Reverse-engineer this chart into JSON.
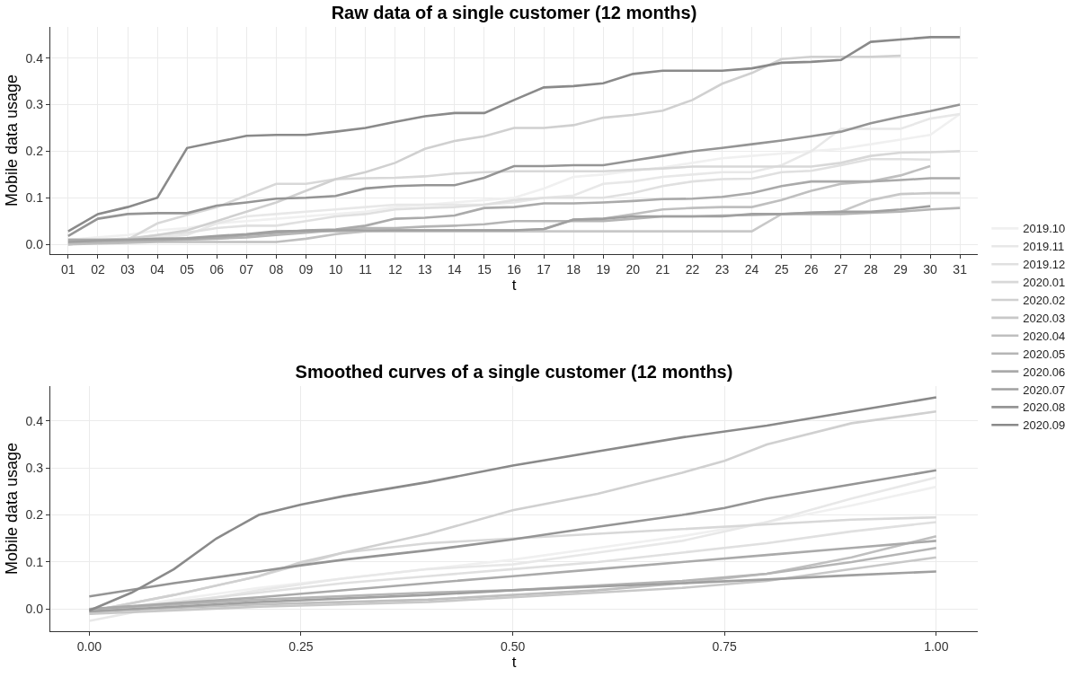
{
  "chart_data": [
    {
      "type": "line",
      "title": "Raw data of a single customer (12 months)",
      "xlabel": "t",
      "ylabel": "Mobile data usage",
      "categories": [
        "01",
        "02",
        "03",
        "04",
        "05",
        "06",
        "07",
        "08",
        "09",
        "10",
        "11",
        "12",
        "13",
        "14",
        "15",
        "16",
        "17",
        "18",
        "19",
        "20",
        "21",
        "22",
        "23",
        "24",
        "25",
        "26",
        "27",
        "28",
        "29",
        "30",
        "31"
      ],
      "ylim": [
        -0.021,
        0.467
      ],
      "yticks": [
        {
          "value": 0,
          "label": "0.0"
        },
        0.1,
        0.2,
        0.3,
        0.4
      ],
      "grid": true,
      "legend": "right",
      "marker": "none",
      "series": [
        {
          "name": "2019.10",
          "color": "#f0f0f0",
          "values": [
            0.01,
            0.015,
            0.02,
            0.03,
            0.035,
            0.045,
            0.05,
            0.055,
            0.06,
            0.065,
            0.07,
            0.08,
            0.085,
            0.09,
            0.095,
            0.1,
            0.12,
            0.145,
            0.15,
            0.158,
            0.165,
            0.175,
            0.185,
            0.19,
            0.195,
            0.2,
            0.205,
            0.215,
            0.225,
            0.235,
            0.28
          ]
        },
        {
          "name": "2019.11",
          "color": "#e8e8e8",
          "values": [
            0.005,
            0.008,
            0.01,
            0.015,
            0.02,
            0.045,
            0.06,
            0.065,
            0.07,
            0.075,
            0.08,
            0.085,
            0.085,
            0.085,
            0.085,
            0.09,
            0.1,
            0.105,
            0.13,
            0.135,
            0.145,
            0.15,
            0.155,
            0.155,
            0.17,
            0.2,
            0.248,
            0.248,
            0.248,
            0.27,
            0.28
          ]
        },
        {
          "name": "2019.12",
          "color": "#e0e0e0",
          "values": [
            0,
            0.005,
            0.01,
            0.02,
            0.025,
            0.035,
            0.04,
            0.04,
            0.05,
            0.06,
            0.065,
            0.075,
            0.078,
            0.08,
            0.085,
            0.095,
            0.1,
            0.1,
            0.1,
            0.11,
            0.125,
            0.135,
            0.14,
            0.141,
            0.155,
            0.158,
            0.17,
            0.183,
            0.183,
            0.182,
            null
          ]
        },
        {
          "name": "2020.01",
          "color": "#d8d8d8",
          "values": [
            0.01,
            0.01,
            0.01,
            0.045,
            0.063,
            0.08,
            0.105,
            0.13,
            0.13,
            0.14,
            0.142,
            0.143,
            0.146,
            0.152,
            0.155,
            0.157,
            0.157,
            0.157,
            0.157,
            0.16,
            0.163,
            0.167,
            0.167,
            0.167,
            0.167,
            0.167,
            0.175,
            0.19,
            0.197,
            0.198,
            0.2
          ]
        },
        {
          "name": "2020.02",
          "color": "#d0d0d0",
          "values": [
            0.01,
            0.01,
            0.012,
            0.02,
            0.03,
            0.05,
            0.07,
            0.09,
            0.115,
            0.14,
            0.155,
            0.175,
            0.205,
            0.222,
            0.232,
            0.25,
            0.25,
            0.256,
            0.272,
            0.278,
            0.287,
            0.31,
            0.345,
            0.368,
            0.398,
            0.403,
            0.403,
            0.403,
            0.405,
            null,
            null
          ]
        },
        {
          "name": "2020.03",
          "color": "#c8c8c8",
          "values": [
            0,
            0.005,
            0.008,
            0.01,
            0.012,
            0.015,
            0.02,
            0.025,
            0.028,
            0.028,
            0.028,
            0.028,
            0.028,
            0.028,
            0.028,
            0.028,
            0.028,
            0.028,
            0.028,
            0.028,
            0.028,
            0.028,
            0.028,
            0.028,
            0.065,
            0.068,
            0.07,
            0.095,
            0.108,
            0.11,
            0.11
          ]
        },
        {
          "name": "2020.04",
          "color": "#bfbfbf",
          "values": [
            0,
            0.002,
            0.003,
            0.005,
            0.005,
            0.005,
            0.005,
            0.005,
            0.012,
            0.022,
            0.028,
            0.03,
            0.03,
            0.03,
            0.03,
            0.03,
            0.032,
            0.053,
            0.055,
            0.065,
            0.075,
            0.078,
            0.08,
            0.08,
            0.095,
            0.115,
            0.13,
            0.135,
            0.148,
            0.168,
            null
          ]
        },
        {
          "name": "2020.05",
          "color": "#b5b5b5",
          "values": [
            0.005,
            0.005,
            0.006,
            0.008,
            0.01,
            0.012,
            0.015,
            0.02,
            0.025,
            0.03,
            0.035,
            0.035,
            0.038,
            0.04,
            0.043,
            0.05,
            0.05,
            0.05,
            0.05,
            0.055,
            0.06,
            0.06,
            0.062,
            0.063,
            0.065,
            0.065,
            0.065,
            0.068,
            0.07,
            0.075,
            0.078
          ]
        },
        {
          "name": "2020.06",
          "color": "#aaaaaa",
          "values": [
            0.01,
            0.01,
            0.01,
            0.01,
            0.012,
            0.015,
            0.02,
            0.025,
            0.03,
            0.032,
            0.04,
            0.055,
            0.057,
            0.062,
            0.078,
            0.08,
            0.088,
            0.088,
            0.09,
            0.093,
            0.097,
            0.098,
            0.102,
            0.11,
            0.125,
            0.135,
            0.135,
            0.135,
            0.138,
            0.142,
            0.142
          ]
        },
        {
          "name": "2020.07",
          "color": "#a0a0a0",
          "values": [
            0.005,
            0.008,
            0.01,
            0.012,
            0.013,
            0.018,
            0.022,
            0.028,
            0.029,
            0.03,
            0.03,
            0.03,
            0.03,
            0.03,
            0.03,
            0.03,
            0.033,
            0.053,
            0.055,
            0.06,
            0.06,
            0.06,
            0.06,
            0.065,
            0.065,
            0.068,
            0.07,
            0.07,
            0.075,
            0.082,
            null
          ]
        },
        {
          "name": "2020.08",
          "color": "#959595",
          "values": [
            0.018,
            0.055,
            0.065,
            0.067,
            0.067,
            0.083,
            0.09,
            0.098,
            0.1,
            0.104,
            0.12,
            0.125,
            0.127,
            0.127,
            0.143,
            0.168,
            0.168,
            0.17,
            0.17,
            0.18,
            0.19,
            0.2,
            0.207,
            0.215,
            0.223,
            0.232,
            0.242,
            0.26,
            0.274,
            0.286,
            0.3
          ]
        },
        {
          "name": "2020.09",
          "color": "#8a8a8a",
          "values": [
            0.028,
            0.065,
            0.08,
            0.1,
            0.207,
            0.22,
            0.233,
            0.235,
            0.235,
            0.242,
            0.25,
            0.263,
            0.275,
            0.282,
            0.282,
            0.31,
            0.337,
            0.34,
            0.346,
            0.366,
            0.373,
            0.373,
            0.373,
            0.378,
            0.39,
            0.392,
            0.396,
            0.435,
            0.44,
            0.445,
            0.445
          ]
        }
      ]
    },
    {
      "type": "line",
      "title": "Smoothed curves of a single customer (12 months)",
      "xlabel": "t",
      "ylabel": "Mobile data usage",
      "xlim": [
        -0.046,
        1.049
      ],
      "xticks": [
        {
          "value": 0,
          "label": "0.00"
        },
        0.25,
        {
          "value": 0.5,
          "label": "0.50"
        },
        0.75,
        {
          "value": 1,
          "label": "1.00"
        }
      ],
      "ylim": [
        -0.047,
        0.474
      ],
      "yticks": [
        {
          "value": 0,
          "label": "0.0"
        },
        0.1,
        0.2,
        0.3,
        0.4
      ],
      "grid": true,
      "marker": "none",
      "series": [
        {
          "color": "#f0f0f0",
          "x": [
            0,
            0.1,
            0.2,
            0.3,
            0.4,
            0.5,
            0.6,
            0.7,
            0.8,
            0.9,
            1
          ],
          "values": [
            -0.01,
            0.02,
            0.045,
            0.065,
            0.085,
            0.105,
            0.13,
            0.155,
            0.185,
            0.22,
            0.26
          ]
        },
        {
          "color": "#e8e8e8",
          "x": [
            0,
            0.1,
            0.2,
            0.3,
            0.4,
            0.5,
            0.6,
            0.7,
            0.8,
            0.9,
            1
          ],
          "values": [
            -0.025,
            0.01,
            0.04,
            0.065,
            0.085,
            0.095,
            0.12,
            0.145,
            0.185,
            0.235,
            0.28
          ]
        },
        {
          "color": "#e0e0e0",
          "x": [
            0,
            0.1,
            0.2,
            0.3,
            0.4,
            0.5,
            0.6,
            0.7,
            0.8,
            0.9,
            1
          ],
          "values": [
            -0.01,
            0.015,
            0.035,
            0.055,
            0.07,
            0.085,
            0.1,
            0.12,
            0.14,
            0.165,
            0.185
          ]
        },
        {
          "color": "#d8d8d8",
          "x": [
            0,
            0.1,
            0.2,
            0.3,
            0.4,
            0.5,
            0.6,
            0.7,
            0.8,
            0.9,
            1
          ],
          "values": [
            -0.005,
            0.03,
            0.07,
            0.12,
            0.14,
            0.15,
            0.16,
            0.17,
            0.18,
            0.19,
            0.195
          ]
        },
        {
          "color": "#d0d0d0",
          "x": [
            0,
            0.1,
            0.2,
            0.25,
            0.3,
            0.4,
            0.5,
            0.6,
            0.7,
            0.75,
            0.8,
            0.9,
            1
          ],
          "values": [
            -0.005,
            0.03,
            0.07,
            0.1,
            0.12,
            0.16,
            0.21,
            0.245,
            0.29,
            0.315,
            0.35,
            0.395,
            0.42
          ]
        },
        {
          "color": "#c8c8c8",
          "x": [
            0,
            0.2,
            0.4,
            0.5,
            0.6,
            0.7,
            0.8,
            0.9,
            1
          ],
          "values": [
            -0.01,
            0.005,
            0.015,
            0.025,
            0.035,
            0.045,
            0.06,
            0.085,
            0.11
          ]
        },
        {
          "color": "#bfbfbf",
          "x": [
            0,
            0.2,
            0.4,
            0.5,
            0.6,
            0.7,
            0.8,
            0.9,
            1
          ],
          "values": [
            -0.005,
            0.01,
            0.02,
            0.03,
            0.04,
            0.055,
            0.075,
            0.11,
            0.155
          ]
        },
        {
          "color": "#b5b5b5",
          "x": [
            0,
            0.2,
            0.4,
            0.5,
            0.6,
            0.7,
            0.8,
            0.9,
            1
          ],
          "values": [
            0,
            0.02,
            0.035,
            0.04,
            0.05,
            0.06,
            0.075,
            0.1,
            0.13
          ]
        },
        {
          "color": "#aaaaaa",
          "x": [
            0,
            0.2,
            0.4,
            0.5,
            0.6,
            0.7,
            0.8,
            0.9,
            1
          ],
          "values": [
            0,
            0.025,
            0.055,
            0.07,
            0.085,
            0.1,
            0.115,
            0.13,
            0.145
          ]
        },
        {
          "color": "#a0a0a0",
          "x": [
            0,
            0.2,
            0.4,
            0.5,
            0.6,
            0.7,
            0.8,
            0.9,
            1
          ],
          "values": [
            -0.005,
            0.015,
            0.03,
            0.04,
            0.048,
            0.055,
            0.063,
            0.072,
            0.08
          ]
        },
        {
          "color": "#959595",
          "x": [
            0,
            0.1,
            0.2,
            0.25,
            0.3,
            0.4,
            0.5,
            0.6,
            0.7,
            0.75,
            0.8,
            0.9,
            1
          ],
          "values": [
            0.027,
            0.055,
            0.08,
            0.093,
            0.105,
            0.125,
            0.148,
            0.175,
            0.2,
            0.215,
            0.235,
            0.265,
            0.295
          ]
        },
        {
          "color": "#8a8a8a",
          "x": [
            0,
            0.05,
            0.1,
            0.15,
            0.2,
            0.25,
            0.3,
            0.4,
            0.5,
            0.6,
            0.7,
            0.8,
            0.9,
            1
          ],
          "values": [
            -0.003,
            0.035,
            0.085,
            0.15,
            0.2,
            0.222,
            0.24,
            0.27,
            0.305,
            0.335,
            0.365,
            0.39,
            0.42,
            0.45
          ]
        }
      ]
    }
  ]
}
